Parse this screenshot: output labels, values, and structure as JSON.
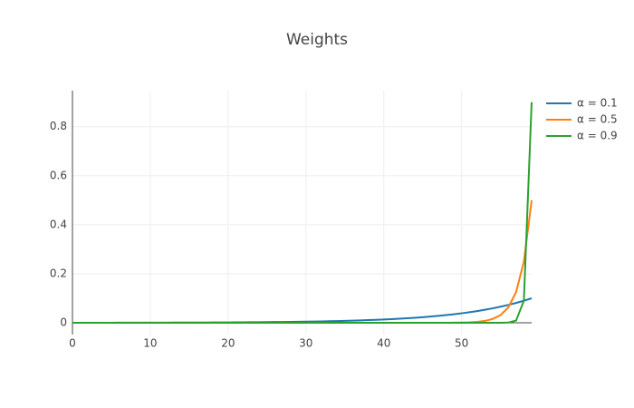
{
  "chart_data": {
    "type": "line",
    "title": "Weights",
    "x": [
      0,
      1,
      2,
      3,
      4,
      5,
      6,
      7,
      8,
      9,
      10,
      11,
      12,
      13,
      14,
      15,
      16,
      17,
      18,
      19,
      20,
      21,
      22,
      23,
      24,
      25,
      26,
      27,
      28,
      29,
      30,
      31,
      32,
      33,
      34,
      35,
      36,
      37,
      38,
      39,
      40,
      41,
      42,
      43,
      44,
      45,
      46,
      47,
      48,
      49,
      50,
      51,
      52,
      53,
      54,
      55,
      56,
      57,
      58,
      59
    ],
    "series": [
      {
        "name": "α = 0.1",
        "color": "#1f77b4",
        "values": [
          0.0002,
          0.0002,
          0.0003,
          0.0003,
          0.0003,
          0.0003,
          0.0004,
          0.0004,
          0.0005,
          0.0005,
          0.0006,
          0.0006,
          0.0007,
          0.0008,
          0.0009,
          0.001,
          0.0011,
          0.0012,
          0.0014,
          0.0015,
          0.0016,
          0.0018,
          0.002,
          0.0023,
          0.0025,
          0.0028,
          0.0031,
          0.0034,
          0.0038,
          0.0042,
          0.0047,
          0.0052,
          0.0058,
          0.0065,
          0.0072,
          0.008,
          0.0089,
          0.0099,
          0.011,
          0.0122,
          0.0135,
          0.015,
          0.0167,
          0.0185,
          0.0206,
          0.0229,
          0.0254,
          0.0282,
          0.0314,
          0.0349,
          0.0387,
          0.043,
          0.0478,
          0.0531,
          0.059,
          0.0656,
          0.0729,
          0.081,
          0.09,
          0.1
        ]
      },
      {
        "name": "α = 0.5",
        "color": "#ff7f0e",
        "values": [
          0,
          0,
          0,
          0,
          0,
          0,
          0,
          0,
          0,
          0,
          0,
          0,
          0,
          0,
          0,
          0,
          0,
          0,
          0,
          0,
          0,
          0,
          0,
          0,
          0,
          0,
          0,
          0,
          0,
          0,
          0,
          0,
          0,
          0,
          0,
          0,
          0,
          0,
          0,
          0,
          0,
          0,
          0,
          0,
          0,
          0,
          0,
          0.0001,
          0.0002,
          0.0005,
          0.001,
          0.002,
          0.0039,
          0.0078,
          0.0156,
          0.0313,
          0.0625,
          0.125,
          0.25,
          0.5
        ]
      },
      {
        "name": "α = 0.9",
        "color": "#2ca02c",
        "values": [
          0,
          0,
          0,
          0,
          0,
          0,
          0,
          0,
          0,
          0,
          0,
          0,
          0,
          0,
          0,
          0,
          0,
          0,
          0,
          0,
          0,
          0,
          0,
          0,
          0,
          0,
          0,
          0,
          0,
          0,
          0,
          0,
          0,
          0,
          0,
          0,
          0,
          0,
          0,
          0,
          0,
          0,
          0,
          0,
          0,
          0,
          0,
          0,
          0,
          0,
          0,
          0,
          0,
          0,
          0,
          0.0001,
          0.0009,
          0.009,
          0.09,
          0.9
        ]
      }
    ],
    "xlim": [
      0,
      59
    ],
    "xticks": [
      0,
      10,
      20,
      30,
      40,
      50
    ],
    "ylim": [
      -0.048,
      0.947
    ],
    "yticks": [
      0,
      0.2,
      0.4,
      0.6,
      0.8
    ],
    "grid": true,
    "legend": "right"
  }
}
